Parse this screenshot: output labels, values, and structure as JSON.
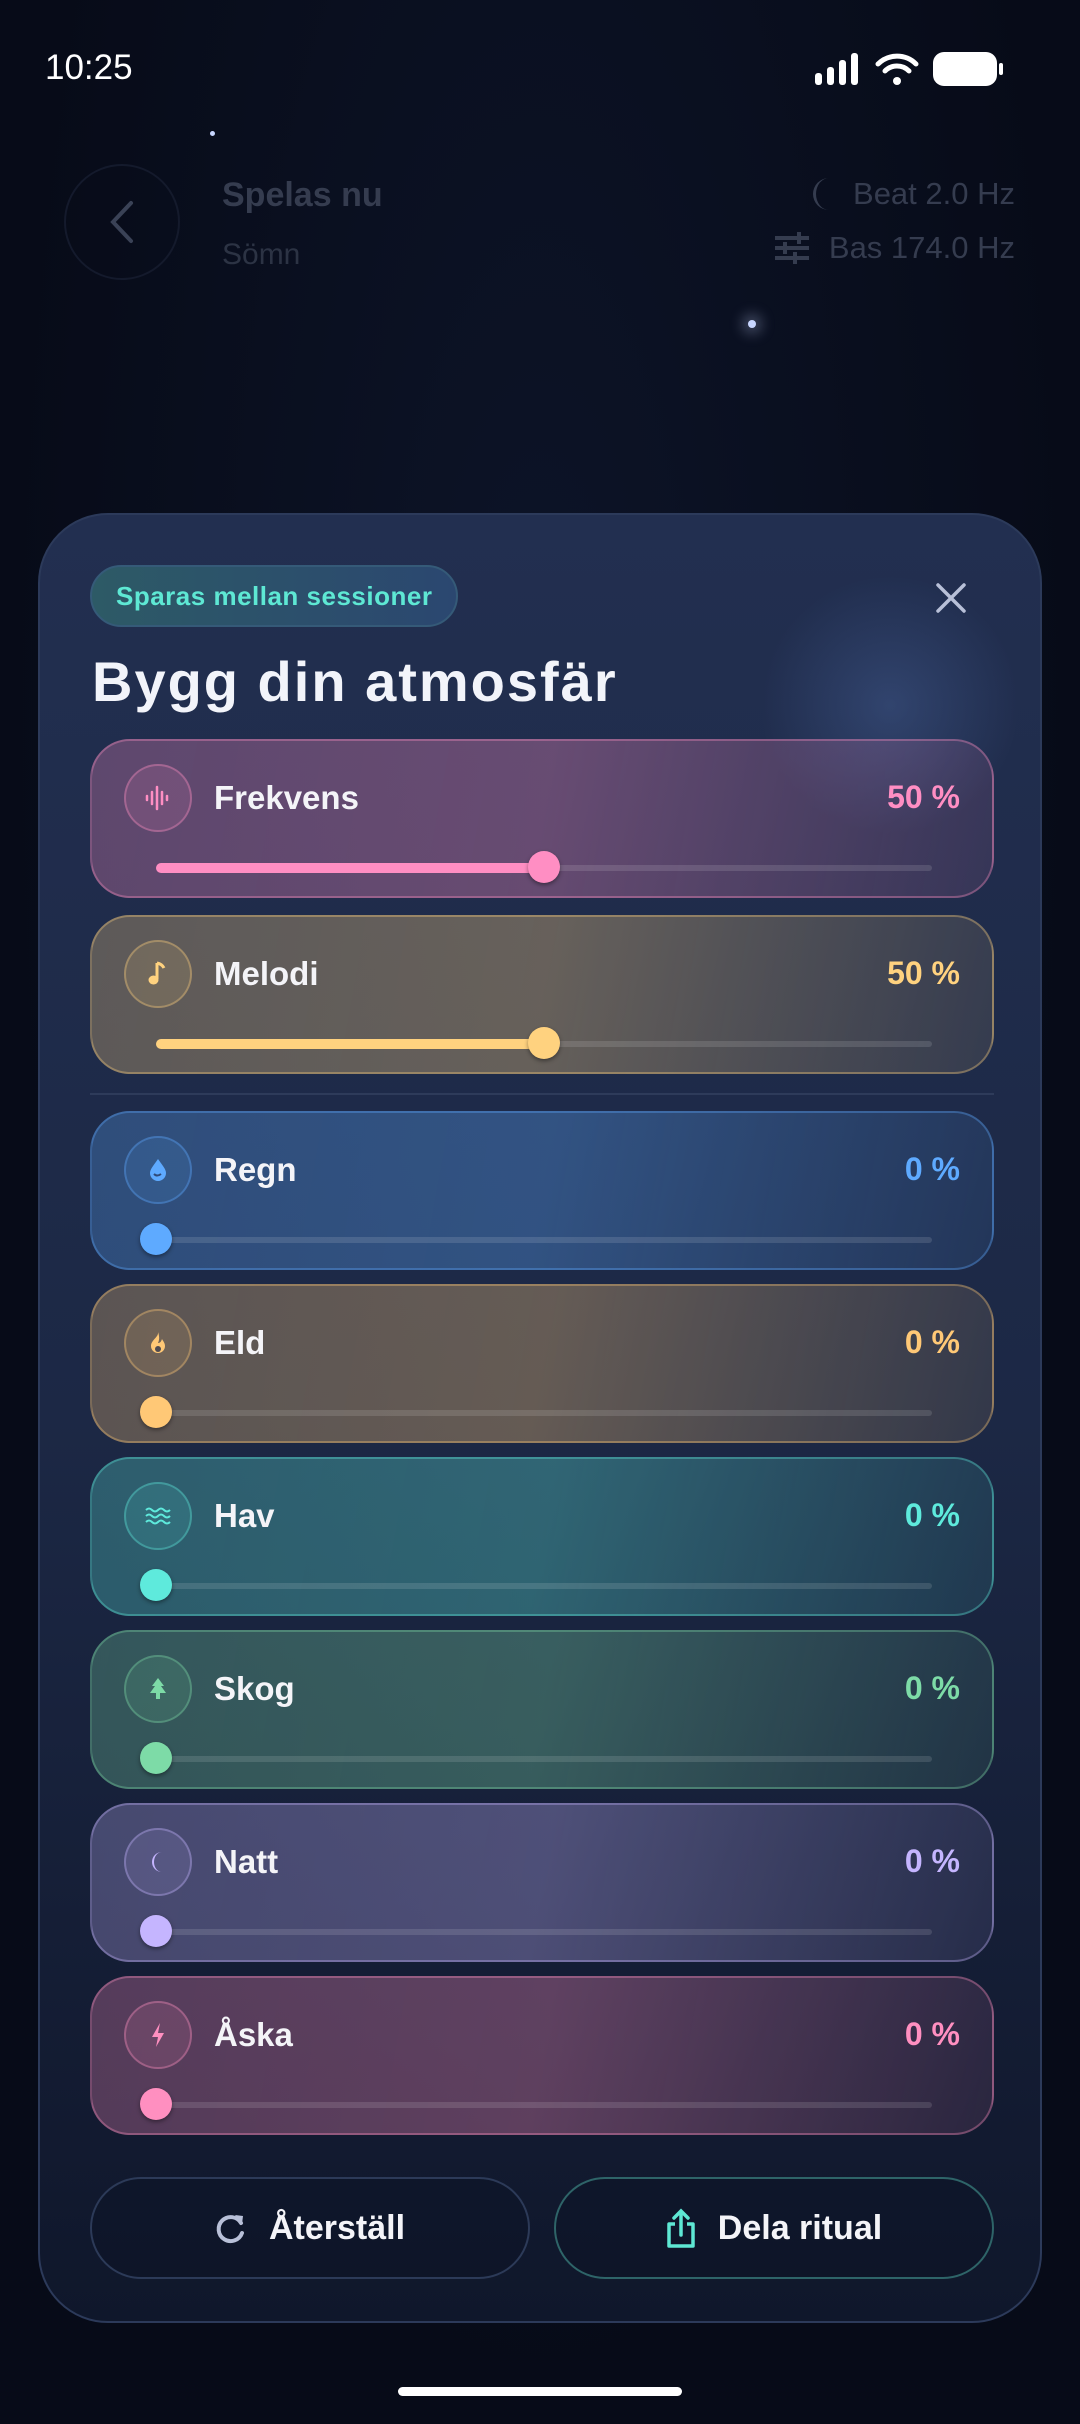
{
  "status": {
    "time": "10:25"
  },
  "header": {
    "title": "Spelas nu",
    "subtitle": "Sömn",
    "beat": "Beat 2.0 Hz",
    "bass": "Bas 174.0 Hz"
  },
  "sheet": {
    "badge": "Sparas mellan sessioner",
    "title": "Bygg din atmosfär",
    "mixers": [
      {
        "label": "Frekvens",
        "value": 50,
        "value_text": "50 %",
        "icon": "waveform-icon",
        "color": "#ff8ec3"
      },
      {
        "label": "Melodi",
        "value": 50,
        "value_text": "50 %",
        "icon": "music-note-icon",
        "color": "#ffd27f"
      }
    ],
    "layers": [
      {
        "label": "Regn",
        "value": 0,
        "value_text": "0 %",
        "icon": "raindrop-icon",
        "color": "#5eaaff"
      },
      {
        "label": "Eld",
        "value": 0,
        "value_text": "0 %",
        "icon": "flame-icon",
        "color": "#ffc876"
      },
      {
        "label": "Hav",
        "value": 0,
        "value_text": "0 %",
        "icon": "waves-icon",
        "color": "#5eeadc"
      },
      {
        "label": "Skog",
        "value": 0,
        "value_text": "0 %",
        "icon": "tree-icon",
        "color": "#7ddba7"
      },
      {
        "label": "Natt",
        "value": 0,
        "value_text": "0 %",
        "icon": "moon-icon",
        "color": "#c5b5ff"
      },
      {
        "label": "Åska",
        "value": 0,
        "value_text": "0 %",
        "icon": "lightning-icon",
        "color": "#ff8fc0"
      }
    ],
    "reset_label": "Återställ",
    "share_label": "Dela ritual"
  }
}
